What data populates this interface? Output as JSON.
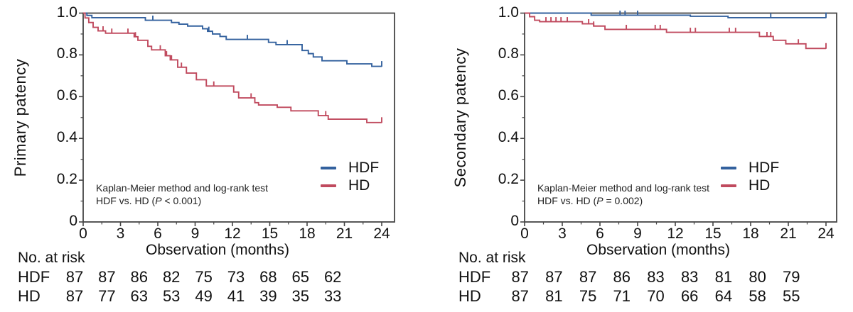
{
  "figure_type": "Kaplan-Meier survival curves, two panels",
  "panels": [
    {
      "id": "primary",
      "ylabel": "Primary patency",
      "xlabel": "Observation (months)",
      "annotation": {
        "line1": "Kaplan-Meier method and log-rank test",
        "line2_prefix": "HDF vs. HD (",
        "p": "P",
        "line2_suffix": " < 0.001)"
      },
      "legend": [
        {
          "label": "HDF",
          "color": "#33619e"
        },
        {
          "label": "HD",
          "color": "#c04a5e"
        }
      ],
      "risk_table": {
        "title": "No. at risk",
        "rows": [
          {
            "label": "HDF",
            "values": [
              87,
              87,
              86,
              82,
              75,
              73,
              68,
              65,
              62
            ]
          },
          {
            "label": "HD",
            "values": [
              87,
              77,
              63,
              53,
              49,
              41,
              39,
              35,
              33
            ]
          }
        ]
      },
      "chart_data": {
        "type": "line",
        "subtype": "kaplan-meier-step",
        "title": "",
        "xlabel": "Observation (months)",
        "ylabel": "Primary patency",
        "xmax": 24,
        "xlim": [
          0,
          25
        ],
        "ylim": [
          0,
          1.0
        ],
        "xticks": [
          0,
          3,
          6,
          9,
          12,
          15,
          18,
          21,
          24
        ],
        "xtick_labels": [
          "0",
          "3",
          "6",
          "9",
          "12",
          "15",
          "18",
          "21",
          "24"
        ],
        "yticks": [
          0,
          0.2,
          0.4,
          0.6,
          0.8,
          1.0
        ],
        "ytick_labels": [
          "0",
          "0.2",
          "0.4",
          "0.6",
          "0.8",
          "1.0"
        ],
        "y_minor_tick_step": 0.1,
        "x_minor_tick_step": 1.5,
        "grid": false,
        "legend_position": "lower right",
        "series": [
          {
            "name": "HDF",
            "color": "#33619e",
            "start": [
              0,
              1.0
            ],
            "steps": [
              [
                0.3,
                0.989
              ],
              [
                0.7,
                0.978
              ],
              [
                5.0,
                0.966
              ],
              [
                7.1,
                0.955
              ],
              [
                7.7,
                0.947
              ],
              [
                8.4,
                0.938
              ],
              [
                9.6,
                0.925
              ],
              [
                10.0,
                0.913
              ],
              [
                10.4,
                0.9
              ],
              [
                11.0,
                0.888
              ],
              [
                11.5,
                0.874
              ],
              [
                14.9,
                0.86
              ],
              [
                15.5,
                0.849
              ],
              [
                17.6,
                0.821
              ],
              [
                18.1,
                0.806
              ],
              [
                18.5,
                0.79
              ],
              [
                19.2,
                0.772
              ],
              [
                21.2,
                0.757
              ],
              [
                23.2,
                0.745
              ]
            ],
            "end_value": 0.745,
            "censor_ticks_months": [
              5.6,
              10.1,
              13.2,
              16.4
            ],
            "end_tick": true
          },
          {
            "name": "HD",
            "color": "#c04a5e",
            "start": [
              0,
              1.0
            ],
            "steps": [
              [
                0.15,
                0.977
              ],
              [
                0.45,
                0.955
              ],
              [
                0.8,
                0.932
              ],
              [
                1.2,
                0.915
              ],
              [
                1.8,
                0.904
              ],
              [
                4.1,
                0.887
              ],
              [
                4.4,
                0.87
              ],
              [
                5.2,
                0.841
              ],
              [
                5.5,
                0.824
              ],
              [
                6.6,
                0.796
              ],
              [
                7.0,
                0.776
              ],
              [
                7.6,
                0.741
              ],
              [
                8.3,
                0.713
              ],
              [
                9.1,
                0.681
              ],
              [
                9.9,
                0.651
              ],
              [
                12.1,
                0.622
              ],
              [
                12.5,
                0.594
              ],
              [
                13.8,
                0.571
              ],
              [
                14.1,
                0.56
              ],
              [
                15.6,
                0.549
              ],
              [
                16.7,
                0.532
              ],
              [
                18.9,
                0.509
              ],
              [
                19.7,
                0.492
              ],
              [
                22.8,
                0.476
              ]
            ],
            "end_value": 0.476,
            "censor_ticks_months": [
              1.6,
              2.3,
              3.6,
              4.2,
              6.2,
              6.7,
              7.1,
              7.9,
              10.5,
              13.5,
              19.5
            ],
            "end_tick": true
          }
        ]
      }
    },
    {
      "id": "secondary",
      "ylabel": "Secondary patency",
      "xlabel": "Observation (months)",
      "annotation": {
        "line1": "Kaplan-Meier method and log-rank test",
        "line2_prefix": "HDF vs. HD (",
        "p": "P",
        "line2_suffix": " = 0.002)"
      },
      "legend": [
        {
          "label": "HDF",
          "color": "#33619e"
        },
        {
          "label": "HD",
          "color": "#c04a5e"
        }
      ],
      "risk_table": {
        "title": "No. at risk",
        "rows": [
          {
            "label": "HDF",
            "values": [
              87,
              87,
              87,
              86,
              83,
              83,
              81,
              80,
              79
            ]
          },
          {
            "label": "HD",
            "values": [
              87,
              81,
              75,
              71,
              70,
              66,
              64,
              58,
              55
            ]
          }
        ]
      },
      "chart_data": {
        "type": "line",
        "subtype": "kaplan-meier-step",
        "title": "",
        "xlabel": "Observation (months)",
        "ylabel": "Secondary patency",
        "xmax": 24,
        "xlim": [
          0,
          25
        ],
        "ylim": [
          0,
          1.0
        ],
        "xticks": [
          0,
          3,
          6,
          9,
          12,
          15,
          18,
          21,
          24
        ],
        "xtick_labels": [
          "0",
          "3",
          "6",
          "9",
          "12",
          "15",
          "18",
          "21",
          "24"
        ],
        "yticks": [
          0,
          0.2,
          0.4,
          0.6,
          0.8,
          1.0
        ],
        "ytick_labels": [
          "0",
          "0.2",
          "0.4",
          "0.6",
          "0.8",
          "1.0"
        ],
        "y_minor_tick_step": 0.1,
        "x_minor_tick_step": 1.5,
        "grid": false,
        "legend_position": "lower right",
        "series": [
          {
            "name": "HDF",
            "color": "#33619e",
            "start": [
              0,
              1.0
            ],
            "steps": [
              [
                5.3,
                0.99
              ],
              [
                13.2,
                0.985
              ],
              [
                16.2,
                0.978
              ]
            ],
            "end_value": 0.978,
            "censor_ticks_months": [
              7.6,
              8.0,
              9.0,
              19.6
            ],
            "end_tick": true
          },
          {
            "name": "HD",
            "color": "#c04a5e",
            "start": [
              0,
              1.0
            ],
            "steps": [
              [
                0.4,
                0.983
              ],
              [
                0.8,
                0.966
              ],
              [
                1.2,
                0.959
              ],
              [
                4.6,
                0.949
              ],
              [
                5.5,
                0.938
              ],
              [
                6.4,
                0.922
              ],
              [
                11.3,
                0.908
              ],
              [
                18.7,
                0.888
              ],
              [
                19.8,
                0.87
              ],
              [
                20.8,
                0.853
              ],
              [
                22.4,
                0.831
              ]
            ],
            "end_value": 0.831,
            "censor_ticks_months": [
              1.7,
              2.1,
              2.5,
              2.9,
              3.4,
              5.1,
              5.5,
              8.1,
              10.4,
              10.8,
              13.2,
              13.6,
              16.3,
              16.8,
              19.3,
              19.6,
              21.8
            ],
            "end_tick": true
          }
        ]
      }
    }
  ]
}
